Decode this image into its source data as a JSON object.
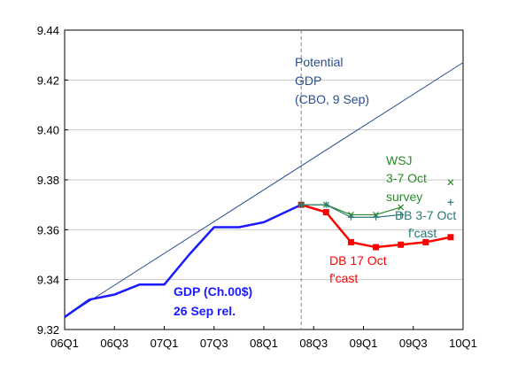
{
  "chart_data": {
    "type": "line",
    "x_categories": [
      "06Q1",
      "06Q2",
      "06Q3",
      "06Q4",
      "07Q1",
      "07Q2",
      "07Q3",
      "07Q4",
      "08Q1",
      "08Q2",
      "08Q3",
      "08Q4",
      "09Q1",
      "09Q2",
      "09Q3",
      "09Q4",
      "10Q1"
    ],
    "x_tick_labels": [
      "06Q1",
      "06Q3",
      "07Q1",
      "07Q3",
      "08Q1",
      "08Q3",
      "09Q1",
      "09Q3",
      "10Q1"
    ],
    "x_tick_indices": [
      0,
      2,
      4,
      6,
      8,
      10,
      12,
      14,
      16
    ],
    "y_ticks": [
      "9.32",
      "9.34",
      "9.36",
      "9.38",
      "9.40",
      "9.42",
      "9.44"
    ],
    "ylim": [
      9.32,
      9.44
    ],
    "grid": true,
    "vline_index": 9.5,
    "series": [
      {
        "key": "potential",
        "color": "#2a4f8f",
        "marker": "none",
        "points": [
          [
            0,
            9.325
          ],
          [
            16,
            9.427
          ]
        ]
      },
      {
        "key": "gdp",
        "color": "#1a1aff",
        "marker": "none",
        "points": [
          [
            0,
            9.325
          ],
          [
            1,
            9.332
          ],
          [
            2,
            9.334
          ],
          [
            3,
            9.338
          ],
          [
            4,
            9.338
          ],
          [
            5,
            9.35
          ],
          [
            6,
            9.361
          ],
          [
            7,
            9.361
          ],
          [
            8,
            9.363
          ],
          [
            9.5,
            9.37
          ]
        ]
      },
      {
        "key": "db17",
        "color": "#ff0000",
        "marker": "square",
        "points": [
          [
            9.5,
            9.37
          ],
          [
            10.5,
            9.367
          ],
          [
            11.5,
            9.355
          ],
          [
            12.5,
            9.353
          ],
          [
            13.5,
            9.354
          ],
          [
            14.5,
            9.355
          ],
          [
            15.5,
            9.357
          ]
        ]
      },
      {
        "key": "wsj",
        "color": "#2a8a2a",
        "marker": "x",
        "points": [
          [
            9.5,
            9.37
          ],
          [
            10.5,
            9.37
          ],
          [
            11.5,
            9.366
          ],
          [
            12.5,
            9.366
          ],
          [
            13.5,
            9.369
          ]
        ],
        "extra_points": [
          [
            15.5,
            9.379
          ]
        ]
      },
      {
        "key": "db37",
        "color": "#2a7a7a",
        "marker": "plus",
        "points": [
          [
            9.5,
            9.37
          ],
          [
            10.5,
            9.37
          ],
          [
            11.5,
            9.365
          ],
          [
            12.5,
            9.365
          ],
          [
            13.5,
            9.366
          ]
        ],
        "extra_points": [
          [
            15.5,
            9.371
          ]
        ]
      }
    ]
  },
  "annotations": {
    "potential": [
      "Potential",
      "GDP",
      "(CBO, 9 Sep)"
    ],
    "wsj": [
      "WSJ",
      "3-7 Oct",
      "survey"
    ],
    "db37": [
      "DB 3-7 Oct",
      "f'cast"
    ],
    "db17": [
      "DB 17 Oct",
      "f'cast"
    ],
    "gdp": [
      "GDP (Ch.00$)",
      "26 Sep rel."
    ]
  },
  "colors": {
    "potential_label": "#2a4f8f",
    "wsj_label": "#2a8a2a",
    "db37_label": "#2a7a7a",
    "db17_label": "#ff0000",
    "gdp_label": "#1a1aff"
  }
}
